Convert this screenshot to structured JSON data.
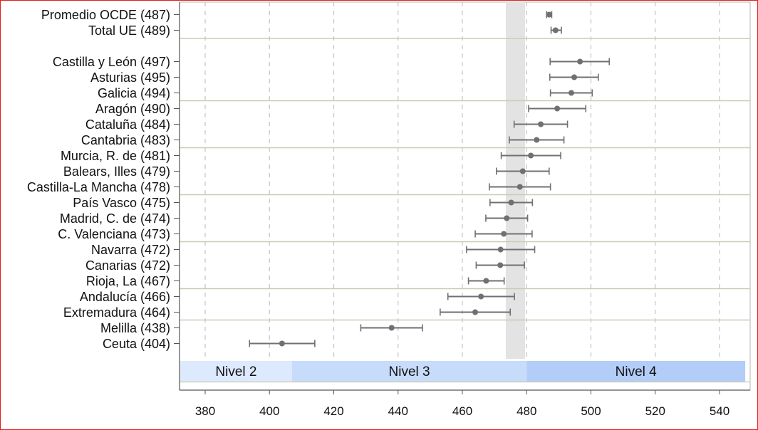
{
  "chart_data": {
    "type": "scatter",
    "orientation": "horizontal",
    "title": "",
    "xlabel": "",
    "ylabel": "",
    "xlim": [
      372,
      548
    ],
    "x_ticks": [
      380,
      400,
      420,
      440,
      460,
      480,
      500,
      520,
      540
    ],
    "grid": "vertical dashed",
    "reference_band": [
      473.5,
      479.5
    ],
    "reference_band_color": "#e3e3e3",
    "marker_color": "#707070",
    "categories": [
      {
        "label": "Promedio OCDE (487)",
        "value": 487,
        "low": 486.2,
        "high": 487.8
      },
      {
        "label": "Total UE (489)",
        "value": 489,
        "low": 487.6,
        "high": 490.8
      },
      {
        "label": "Castilla y León (497)",
        "value": 496.6,
        "low": 487.3,
        "high": 505.7
      },
      {
        "label": "Asturias (495)",
        "value": 494.8,
        "low": 487.2,
        "high": 502.3
      },
      {
        "label": "Galicia (494)",
        "value": 493.9,
        "low": 487.4,
        "high": 500.4
      },
      {
        "label": "Aragón (490)",
        "value": 489.5,
        "low": 480.6,
        "high": 498.4
      },
      {
        "label": "Cataluña (484)",
        "value": 484.4,
        "low": 476.1,
        "high": 492.7
      },
      {
        "label": "Cantabria (483)",
        "value": 483.1,
        "low": 474.6,
        "high": 491.6
      },
      {
        "label": "Murcia, R. de (481)",
        "value": 481.3,
        "low": 472.1,
        "high": 490.6
      },
      {
        "label": "Balears, Illes (479)",
        "value": 478.8,
        "low": 470.6,
        "high": 487.0
      },
      {
        "label": "Castilla-La Mancha (478)",
        "value": 477.9,
        "low": 468.4,
        "high": 487.4
      },
      {
        "label": "País Vasco (475)",
        "value": 475.2,
        "low": 468.6,
        "high": 481.8
      },
      {
        "label": "Madrid, C. de (474)",
        "value": 473.8,
        "low": 467.3,
        "high": 480.3
      },
      {
        "label": "C. Valenciana (473)",
        "value": 472.9,
        "low": 464.0,
        "high": 481.7
      },
      {
        "label": "Navarra (472)",
        "value": 471.9,
        "low": 461.3,
        "high": 482.5
      },
      {
        "label": "Canarias (472)",
        "value": 471.8,
        "low": 464.3,
        "high": 479.3
      },
      {
        "label": "Rioja, La (467)",
        "value": 467.4,
        "low": 461.9,
        "high": 473.0
      },
      {
        "label": "Andalucía (466)",
        "value": 465.8,
        "low": 455.5,
        "high": 476.2
      },
      {
        "label": "Extremadura (464)",
        "value": 464.0,
        "low": 453.1,
        "high": 474.9
      },
      {
        "label": "Melilla (438)",
        "value": 438.0,
        "low": 428.4,
        "high": 447.6
      },
      {
        "label": "Ceuta (404)",
        "value": 403.9,
        "low": 393.8,
        "high": 414.1
      }
    ],
    "separators_after": [
      1,
      4,
      7,
      10,
      13,
      16,
      18
    ],
    "levels": [
      {
        "label": "Nivel 2",
        "from": 372,
        "to": 407,
        "color": "#dde9fd"
      },
      {
        "label": "Nivel 3",
        "from": 407,
        "to": 480,
        "color": "#c7dbfb"
      },
      {
        "label": "Nivel 4",
        "from": 480,
        "to": 548,
        "color": "#b3cdf9"
      }
    ]
  }
}
